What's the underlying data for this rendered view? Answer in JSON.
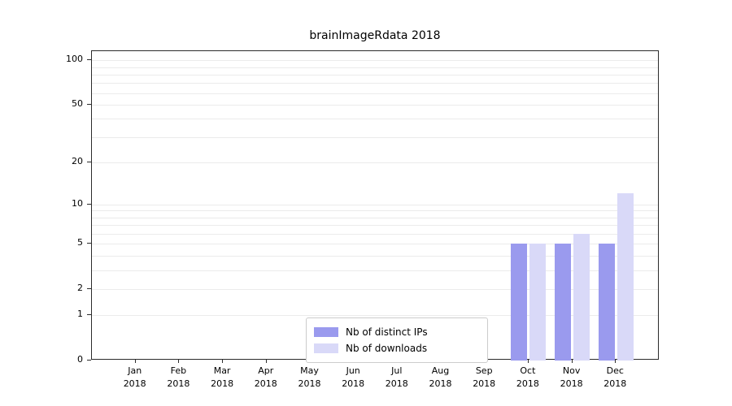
{
  "chart_data": {
    "type": "bar",
    "title": "brainImageRdata 2018",
    "categories": [
      "Jan 2018",
      "Feb 2018",
      "Mar 2018",
      "Apr 2018",
      "May 2018",
      "Jun 2018",
      "Jul 2018",
      "Aug 2018",
      "Sep 2018",
      "Oct 2018",
      "Nov 2018",
      "Dec 2018"
    ],
    "series": [
      {
        "name": "Nb of distinct IPs",
        "color": "#9a9aee",
        "values": [
          0,
          0,
          0,
          0,
          0,
          0,
          0,
          0,
          0,
          5,
          5,
          5
        ]
      },
      {
        "name": "Nb of downloads",
        "color": "#d9d9f8",
        "values": [
          0,
          0,
          0,
          0,
          0,
          0,
          0,
          0,
          0,
          5,
          6,
          12
        ]
      }
    ],
    "y_ticks": [
      0,
      1,
      2,
      5,
      10,
      20,
      50,
      100
    ],
    "y_scale": "log1p",
    "y_axis_max": 115,
    "grid_values": [
      1,
      2,
      3,
      4,
      5,
      6,
      7,
      8,
      9,
      10,
      20,
      30,
      40,
      50,
      60,
      70,
      80,
      90,
      100
    ],
    "grid": true,
    "legend_position": "inside-bottom-center",
    "xlabel": "",
    "ylabel": ""
  }
}
